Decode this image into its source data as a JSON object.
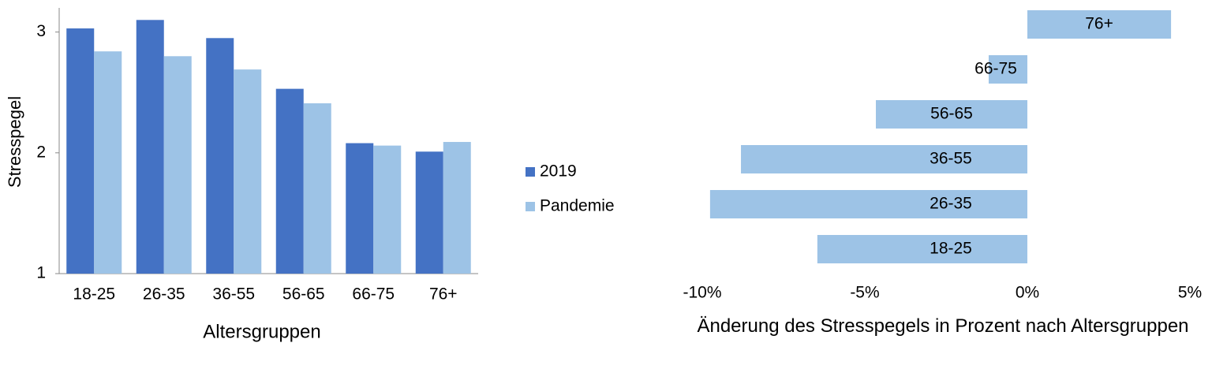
{
  "chart_data": [
    {
      "type": "bar",
      "y_label": "Stresspegel",
      "x_label": "Altersgruppen",
      "categories": [
        "18-25",
        "26-35",
        "36-55",
        "56-65",
        "66-75",
        "76+"
      ],
      "series": [
        {
          "name": "2019",
          "color": "#4472c4",
          "values": [
            3.03,
            3.1,
            2.95,
            2.53,
            2.08,
            2.01
          ]
        },
        {
          "name": "Pandemie",
          "color": "#9dc3e6",
          "values": [
            2.84,
            2.8,
            2.69,
            2.41,
            2.06,
            2.09
          ]
        }
      ],
      "ylim": [
        1,
        3.2
      ],
      "yticks": [
        1,
        2,
        3
      ],
      "legend": "right"
    },
    {
      "type": "hbar",
      "x_label": "Änderung des Stresspegels in Prozent nach Altersgruppen",
      "categories": [
        "18-25",
        "26-35",
        "36-55",
        "56-65",
        "66-75",
        "76+"
      ],
      "values": [
        -6.46,
        -9.76,
        -8.81,
        -4.66,
        -1.19,
        4.42
      ],
      "color": "#9dc3e6",
      "xlim": [
        -10,
        5
      ],
      "xticks": [
        {
          "value": -10,
          "label": "-10%"
        },
        {
          "value": -5,
          "label": "-5%"
        },
        {
          "value": 0,
          "label": "0%"
        },
        {
          "value": 5,
          "label": "5%"
        }
      ]
    }
  ]
}
